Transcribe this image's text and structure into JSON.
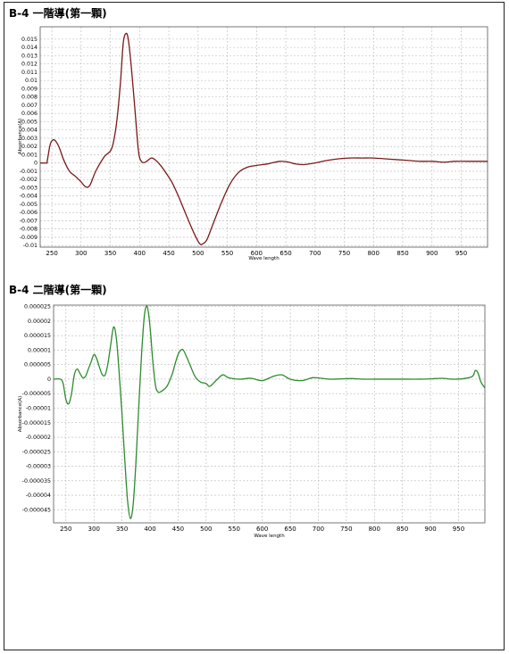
{
  "sections": [
    {
      "title": "B-4 一階導(第一顆)"
    },
    {
      "title": "B-4 二階導(第一顆)"
    }
  ],
  "chart_data": [
    {
      "type": "line",
      "title": "B-4 一階導(第一顆)",
      "xlabel": "Wave length",
      "ylabel": "Absorbance(A)",
      "xlim": [
        230,
        995
      ],
      "ylim": [
        -0.0102,
        0.0165
      ],
      "grid": true,
      "xticks": [
        250,
        300,
        350,
        400,
        450,
        500,
        550,
        600,
        650,
        700,
        750,
        800,
        850,
        900,
        950
      ],
      "xtick_labels": [
        "250",
        "300",
        "350",
        "400",
        "450",
        "500",
        "550",
        "600",
        "650",
        "700",
        "750",
        "800",
        "850",
        "900",
        "950"
      ],
      "yticks": [
        0.015,
        0.014,
        0.013,
        0.012,
        0.011,
        0.01,
        0.009,
        0.008,
        0.007,
        0.006,
        0.005,
        0.004,
        0.003,
        0.002,
        0.001,
        0,
        -0.001,
        -0.002,
        -0.003,
        -0.004,
        -0.005,
        -0.006,
        -0.007,
        -0.008,
        -0.009,
        -0.01
      ],
      "ytick_labels": [
        "0.015",
        "0.014",
        "0.013",
        "0.012",
        "0.011",
        "0.01",
        "0.009",
        "0.008",
        "0.007",
        "0.006",
        "0.005",
        "0.004",
        "0.003",
        "0.002",
        "0.001",
        "0",
        "-0.001",
        "-0.002",
        "-0.003",
        "-0.004",
        "-0.005",
        "-0.006",
        "-0.007",
        "-0.008",
        "-0.009",
        "-0.01"
      ],
      "colors": {
        "line": "#7a1a1a",
        "grid": "#b8b8b8",
        "axis_border": "#555555"
      },
      "series": [
        {
          "x": [
            230,
            241,
            242,
            247,
            252,
            257,
            263,
            270,
            280,
            290,
            300,
            308,
            315,
            325,
            340,
            352,
            360,
            367,
            372,
            377,
            381,
            386,
            392,
            398,
            403,
            410,
            420,
            428,
            437,
            445,
            455,
            465,
            475,
            485,
            495,
            503,
            508,
            515,
            525,
            540,
            555,
            570,
            585,
            600,
            620,
            640,
            655,
            665,
            680,
            700,
            720,
            740,
            760,
            780,
            800,
            820,
            840,
            860,
            880,
            900,
            920,
            940,
            960,
            980,
            995
          ],
          "y": [
            0,
            0,
            0.0002,
            0.0022,
            0.0028,
            0.0026,
            0.0018,
            0.0004,
            -0.001,
            -0.0016,
            -0.0023,
            -0.0029,
            -0.0027,
            -0.001,
            0.0008,
            0.0017,
            0.0045,
            0.0095,
            0.0145,
            0.0157,
            0.0148,
            0.0115,
            0.0065,
            0.0015,
            0.0002,
            0.0001,
            0.0006,
            0.0003,
            -0.0004,
            -0.0012,
            -0.0023,
            -0.0038,
            -0.0055,
            -0.0072,
            -0.0088,
            -0.0098,
            -0.0098,
            -0.0093,
            -0.0075,
            -0.0048,
            -0.0025,
            -0.0011,
            -0.0005,
            -0.0003,
            -0.0001,
            0.0002,
            0.0001,
            -0.0001,
            -0.0002,
            0,
            0.0003,
            0.0005,
            0.0006,
            0.0006,
            0.0006,
            0.0005,
            0.0004,
            0.0003,
            0.0002,
            0.0002,
            0.0001,
            0.0002,
            0.0002,
            0.0002,
            0.0002
          ]
        }
      ]
    },
    {
      "type": "line",
      "title": "B-4 二階導(第一顆)",
      "xlabel": "Wave length",
      "ylabel": "Absorbance(A)",
      "xlim": [
        228,
        997
      ],
      "ylim": [
        -4.95e-05,
        2.55e-05
      ],
      "grid": true,
      "xticks": [
        250,
        300,
        350,
        400,
        450,
        500,
        550,
        600,
        650,
        700,
        750,
        800,
        850,
        900,
        950
      ],
      "xtick_labels": [
        "250",
        "300",
        "350",
        "400",
        "450",
        "500",
        "550",
        "600",
        "650",
        "700",
        "750",
        "800",
        "850",
        "900",
        "950"
      ],
      "yticks": [
        2.5e-05,
        2e-05,
        1.5e-05,
        1e-05,
        5e-06,
        0,
        -5e-06,
        -1e-05,
        -1.5e-05,
        -2e-05,
        -2.5e-05,
        -3e-05,
        -3.5e-05,
        -4e-05,
        -4.5e-05
      ],
      "ytick_labels": [
        "0.000025",
        "0.00002",
        "0.000015",
        "0.00001",
        "0.000005",
        "0",
        "-0.000005",
        "-0.00001",
        "-0.000015",
        "-0.00002",
        "-0.000025",
        "-0.00003",
        "-0.000035",
        "-0.00004",
        "-0.000045"
      ],
      "colors": {
        "line": "#2e8b2e",
        "grid": "#b8b8b8",
        "axis_border": "#555555"
      },
      "series": [
        {
          "x": [
            228,
            240,
            245,
            250,
            255,
            260,
            265,
            270,
            275,
            280,
            285,
            290,
            295,
            300,
            305,
            310,
            315,
            320,
            325,
            330,
            335,
            340,
            345,
            350,
            355,
            360,
            365,
            370,
            375,
            380,
            385,
            390,
            395,
            400,
            405,
            410,
            415,
            420,
            425,
            430,
            435,
            440,
            445,
            450,
            455,
            460,
            470,
            480,
            490,
            500,
            505,
            510,
            520,
            530,
            540,
            560,
            580,
            600,
            620,
            635,
            650,
            670,
            690,
            705,
            720,
            740,
            760,
            780,
            800,
            820,
            840,
            860,
            880,
            900,
            920,
            940,
            960,
            975,
            980,
            985,
            990,
            997
          ],
          "y": [
            0,
            0,
            -1.5e-06,
            -7e-06,
            -8.5e-06,
            -5e-06,
            1.5e-06,
            3.5e-06,
            2e-06,
            5e-07,
            1e-06,
            3.5e-06,
            6e-06,
            8.5e-06,
            7e-06,
            4e-06,
            1.5e-06,
            1.5e-06,
            5.5e-06,
            1.2e-05,
            1.8e-05,
            1.4e-05,
            2e-06,
            -1.2e-05,
            -2.8e-05,
            -4.2e-05,
            -4.8e-05,
            -4.3e-05,
            -2.8e-05,
            -9e-06,
            9e-06,
            2.2e-05,
            2.5e-05,
            1.8e-05,
            6e-06,
            -2.5e-06,
            -4.5e-06,
            -4.2e-06,
            -3.5e-06,
            -2.5e-06,
            -5e-07,
            2e-06,
            5.5e-06,
            8.5e-06,
            1e-05,
            9.8e-06,
            5.5e-06,
            1e-06,
            -1e-06,
            -1.5e-06,
            -2.5e-06,
            -2e-06,
            0,
            1.5e-06,
            5e-07,
            0,
            3e-07,
            -5e-07,
            1e-06,
            1.5e-06,
            0,
            -5e-07,
            5e-07,
            3e-07,
            0,
            1e-07,
            2e-07,
            0,
            0,
            0,
            0,
            0,
            0,
            1e-07,
            3e-07,
            0,
            2e-07,
            1e-06,
            3e-06,
            2e-06,
            -1e-06,
            -3e-06
          ]
        }
      ]
    }
  ]
}
